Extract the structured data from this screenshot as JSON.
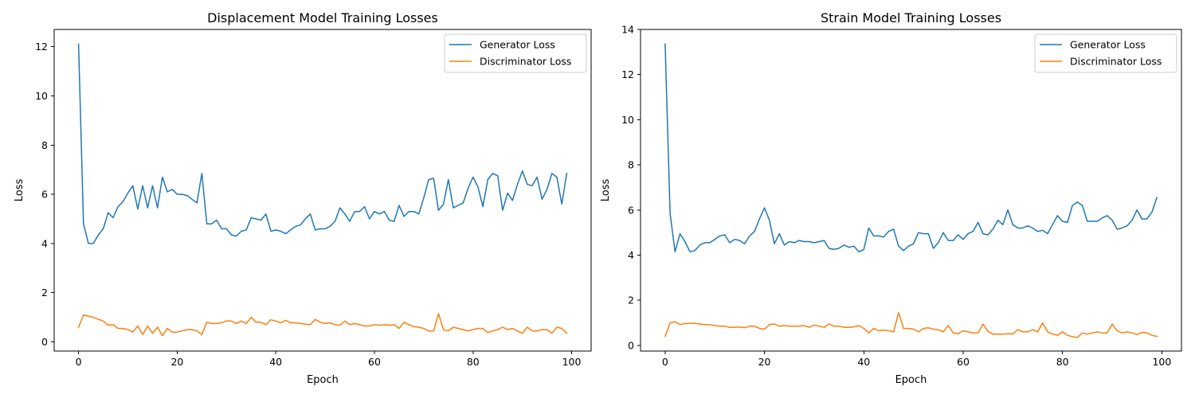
{
  "chart_data": [
    {
      "type": "line",
      "title": "Displacement Model Training Losses",
      "xlabel": "Epoch",
      "ylabel": "Loss",
      "xlim": [
        -4.95,
        103.95
      ],
      "ylim": [
        -0.37,
        12.7
      ],
      "xticks": [
        0,
        20,
        40,
        60,
        80,
        100
      ],
      "yticks": [
        0,
        2,
        4,
        6,
        8,
        10,
        12
      ],
      "grid": false,
      "legend_position": "top-right",
      "x": [
        0,
        1,
        2,
        3,
        4,
        5,
        6,
        7,
        8,
        9,
        10,
        11,
        12,
        13,
        14,
        15,
        16,
        17,
        18,
        19,
        20,
        21,
        22,
        23,
        24,
        25,
        26,
        27,
        28,
        29,
        30,
        31,
        32,
        33,
        34,
        35,
        36,
        37,
        38,
        39,
        40,
        41,
        42,
        43,
        44,
        45,
        46,
        47,
        48,
        49,
        50,
        51,
        52,
        53,
        54,
        55,
        56,
        57,
        58,
        59,
        60,
        61,
        62,
        63,
        64,
        65,
        66,
        67,
        68,
        69,
        70,
        71,
        72,
        73,
        74,
        75,
        76,
        77,
        78,
        79,
        80,
        81,
        82,
        83,
        84,
        85,
        86,
        87,
        88,
        89,
        90,
        91,
        92,
        93,
        94,
        95,
        96,
        97,
        98,
        99
      ],
      "series": [
        {
          "name": "Generator Loss",
          "color": "#1f77b4",
          "values": [
            12.1,
            4.8,
            4.0,
            4.0,
            4.35,
            4.6,
            5.25,
            5.05,
            5.5,
            5.7,
            6.05,
            6.35,
            5.4,
            6.35,
            5.45,
            6.35,
            5.45,
            6.7,
            6.1,
            6.2,
            6.0,
            6.0,
            5.95,
            5.8,
            5.65,
            6.85,
            4.8,
            4.8,
            4.95,
            4.6,
            4.6,
            4.35,
            4.3,
            4.5,
            4.55,
            5.05,
            5.0,
            4.95,
            5.2,
            4.5,
            4.55,
            4.5,
            4.4,
            4.55,
            4.7,
            4.75,
            5.0,
            5.2,
            4.55,
            4.6,
            4.6,
            4.7,
            4.9,
            5.45,
            5.2,
            4.9,
            5.3,
            5.3,
            5.5,
            5.0,
            5.3,
            5.2,
            5.3,
            4.95,
            4.9,
            5.55,
            5.1,
            5.3,
            5.3,
            5.2,
            5.85,
            6.6,
            6.65,
            5.35,
            5.6,
            6.6,
            5.45,
            5.55,
            5.65,
            6.25,
            6.7,
            6.3,
            5.5,
            6.6,
            6.85,
            6.75,
            5.35,
            6.05,
            5.75,
            6.4,
            6.95,
            6.4,
            6.35,
            6.7,
            5.8,
            6.2,
            6.85,
            6.7,
            5.6,
            6.85
          ]
        },
        {
          "name": "Discriminator Loss",
          "color": "#ff7f0e",
          "values": [
            0.6,
            1.1,
            1.05,
            1.0,
            0.92,
            0.85,
            0.68,
            0.7,
            0.55,
            0.55,
            0.5,
            0.4,
            0.65,
            0.3,
            0.65,
            0.35,
            0.6,
            0.25,
            0.55,
            0.4,
            0.4,
            0.45,
            0.5,
            0.5,
            0.45,
            0.3,
            0.8,
            0.75,
            0.75,
            0.78,
            0.85,
            0.85,
            0.75,
            0.85,
            0.75,
            1.0,
            0.8,
            0.8,
            0.7,
            0.9,
            0.85,
            0.78,
            0.88,
            0.78,
            0.78,
            0.75,
            0.72,
            0.7,
            0.92,
            0.8,
            0.75,
            0.78,
            0.7,
            0.68,
            0.85,
            0.7,
            0.75,
            0.7,
            0.65,
            0.65,
            0.7,
            0.68,
            0.7,
            0.68,
            0.7,
            0.55,
            0.8,
            0.7,
            0.62,
            0.6,
            0.55,
            0.45,
            0.45,
            1.15,
            0.5,
            0.45,
            0.6,
            0.55,
            0.5,
            0.45,
            0.5,
            0.55,
            0.55,
            0.38,
            0.45,
            0.5,
            0.6,
            0.5,
            0.55,
            0.45,
            0.35,
            0.6,
            0.45,
            0.45,
            0.5,
            0.5,
            0.35,
            0.6,
            0.55,
            0.35
          ]
        }
      ]
    },
    {
      "type": "line",
      "title": "Strain Model Training Losses",
      "xlabel": "Epoch",
      "ylabel": "Loss",
      "xlim": [
        -4.95,
        103.95
      ],
      "ylim": [
        -0.25,
        14.0
      ],
      "xticks": [
        0,
        20,
        40,
        60,
        80,
        100
      ],
      "yticks": [
        0,
        2,
        4,
        6,
        8,
        10,
        12,
        14
      ],
      "grid": false,
      "legend_position": "top-right",
      "x": [
        0,
        1,
        2,
        3,
        4,
        5,
        6,
        7,
        8,
        9,
        10,
        11,
        12,
        13,
        14,
        15,
        16,
        17,
        18,
        19,
        20,
        21,
        22,
        23,
        24,
        25,
        26,
        27,
        28,
        29,
        30,
        31,
        32,
        33,
        34,
        35,
        36,
        37,
        38,
        39,
        40,
        41,
        42,
        43,
        44,
        45,
        46,
        47,
        48,
        49,
        50,
        51,
        52,
        53,
        54,
        55,
        56,
        57,
        58,
        59,
        60,
        61,
        62,
        63,
        64,
        65,
        66,
        67,
        68,
        69,
        70,
        71,
        72,
        73,
        74,
        75,
        76,
        77,
        78,
        79,
        80,
        81,
        82,
        83,
        84,
        85,
        86,
        87,
        88,
        89,
        90,
        91,
        92,
        93,
        94,
        95,
        96,
        97,
        98,
        99
      ],
      "series": [
        {
          "name": "Generator Loss",
          "color": "#1f77b4",
          "values": [
            13.35,
            5.85,
            4.15,
            4.95,
            4.6,
            4.15,
            4.2,
            4.45,
            4.55,
            4.55,
            4.7,
            4.85,
            4.9,
            4.55,
            4.7,
            4.65,
            4.5,
            4.85,
            5.05,
            5.6,
            6.1,
            5.55,
            4.5,
            4.95,
            4.45,
            4.6,
            4.55,
            4.65,
            4.6,
            4.6,
            4.55,
            4.6,
            4.65,
            4.3,
            4.25,
            4.3,
            4.45,
            4.35,
            4.4,
            4.15,
            4.25,
            5.2,
            4.85,
            4.85,
            4.8,
            5.05,
            5.15,
            4.4,
            4.2,
            4.4,
            4.5,
            5.0,
            4.95,
            4.95,
            4.3,
            4.55,
            5.0,
            4.65,
            4.65,
            4.9,
            4.7,
            4.95,
            5.05,
            5.45,
            4.95,
            4.9,
            5.15,
            5.55,
            5.35,
            6.0,
            5.35,
            5.2,
            5.2,
            5.3,
            5.2,
            5.05,
            5.1,
            4.95,
            5.35,
            5.75,
            5.5,
            5.45,
            6.2,
            6.35,
            6.2,
            5.5,
            5.5,
            5.5,
            5.65,
            5.75,
            5.55,
            5.15,
            5.2,
            5.3,
            5.55,
            6.0,
            5.6,
            5.6,
            5.9,
            6.55
          ]
        },
        {
          "name": "Discriminator Loss",
          "color": "#ff7f0e",
          "values": [
            0.4,
            1.0,
            1.05,
            0.92,
            0.97,
            0.97,
            0.98,
            0.95,
            0.92,
            0.92,
            0.88,
            0.85,
            0.85,
            0.8,
            0.8,
            0.82,
            0.78,
            0.85,
            0.85,
            0.75,
            0.72,
            0.92,
            0.95,
            0.85,
            0.88,
            0.85,
            0.85,
            0.85,
            0.88,
            0.8,
            0.9,
            0.85,
            0.8,
            0.95,
            0.85,
            0.85,
            0.8,
            0.8,
            0.82,
            0.88,
            0.75,
            0.55,
            0.75,
            0.65,
            0.68,
            0.65,
            0.6,
            1.45,
            0.75,
            0.75,
            0.72,
            0.6,
            0.75,
            0.78,
            0.72,
            0.7,
            0.6,
            0.88,
            0.55,
            0.52,
            0.65,
            0.6,
            0.55,
            0.55,
            0.95,
            0.62,
            0.5,
            0.5,
            0.5,
            0.52,
            0.5,
            0.7,
            0.6,
            0.6,
            0.7,
            0.6,
            1.0,
            0.6,
            0.5,
            0.45,
            0.6,
            0.45,
            0.38,
            0.35,
            0.55,
            0.5,
            0.55,
            0.6,
            0.55,
            0.55,
            0.95,
            0.65,
            0.55,
            0.6,
            0.55,
            0.48,
            0.58,
            0.55,
            0.45,
            0.4
          ]
        }
      ]
    }
  ]
}
